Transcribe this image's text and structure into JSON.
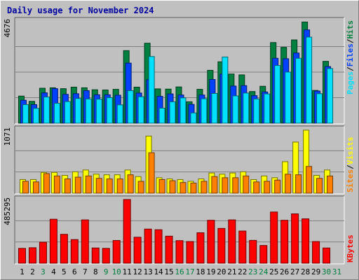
{
  "title": "Daily usage for November 2024",
  "colors": {
    "hits": "#008040",
    "files": "#0040ff",
    "pages": "#00e0ff",
    "visits": "#ffff00",
    "sites": "#ff8000",
    "kbytes": "#ff0000",
    "weekday_label": "#000000",
    "weekend_label": "#008040",
    "panel_bg": "#c0c0c0",
    "grid": "#808080"
  },
  "chart_data": [
    {
      "type": "bar",
      "panel": "hits-files-pages",
      "y_max_label": "4676",
      "ylim": [
        0,
        4676
      ],
      "legend": [
        "Pages",
        "Files",
        "Hits"
      ],
      "categories": [
        "1",
        "2",
        "3",
        "4",
        "5",
        "6",
        "7",
        "8",
        "9",
        "10",
        "11",
        "12",
        "13",
        "14",
        "15",
        "16",
        "17",
        "18",
        "19",
        "20",
        "21",
        "22",
        "23",
        "24",
        "25",
        "26",
        "27",
        "28",
        "29",
        "30",
        "31"
      ],
      "series": [
        {
          "name": "Hits",
          "values": [
            1240,
            1000,
            1600,
            1620,
            1580,
            1650,
            1620,
            1530,
            1520,
            1550,
            3320,
            1650,
            3660,
            1570,
            1560,
            1660,
            980,
            1550,
            2420,
            2810,
            2250,
            2210,
            1450,
            1690,
            3690,
            3470,
            3810,
            4630,
            1500,
            2830,
            0
          ]
        },
        {
          "name": "Files",
          "values": [
            1050,
            850,
            1390,
            1580,
            1320,
            1350,
            1490,
            1300,
            1300,
            1280,
            2750,
            1380,
            1990,
            1230,
            1340,
            1290,
            860,
            1290,
            2000,
            2250,
            1700,
            1720,
            1260,
            1430,
            2970,
            2950,
            3210,
            4270,
            1470,
            2590,
            0
          ]
        },
        {
          "name": "Pages",
          "values": [
            850,
            680,
            1200,
            910,
            990,
            1130,
            1110,
            1100,
            1170,
            840,
            1490,
            1210,
            3050,
            690,
            980,
            1160,
            470,
            1120,
            1360,
            3030,
            1250,
            1380,
            1110,
            1340,
            2640,
            2340,
            2970,
            3940,
            1350,
            2500,
            0
          ]
        }
      ]
    },
    {
      "type": "bar",
      "panel": "visits-sites",
      "y_max_label": "1071",
      "ylim": [
        0,
        1071
      ],
      "legend": [
        "Sites",
        "Visits"
      ],
      "categories": [
        "1",
        "2",
        "3",
        "4",
        "5",
        "6",
        "7",
        "8",
        "9",
        "10",
        "11",
        "12",
        "13",
        "14",
        "15",
        "16",
        "17",
        "18",
        "19",
        "20",
        "21",
        "22",
        "23",
        "24",
        "25",
        "26",
        "27",
        "28",
        "29",
        "30",
        "31"
      ],
      "series": [
        {
          "name": "Visits",
          "values": [
            230,
            230,
            350,
            350,
            300,
            360,
            390,
            320,
            310,
            310,
            390,
            280,
            960,
            260,
            240,
            230,
            200,
            240,
            340,
            320,
            340,
            360,
            230,
            290,
            260,
            530,
            860,
            1060,
            300,
            390,
            0
          ]
        },
        {
          "name": "Sites",
          "values": [
            200,
            190,
            330,
            290,
            240,
            270,
            290,
            250,
            240,
            240,
            310,
            200,
            680,
            230,
            210,
            180,
            170,
            200,
            280,
            260,
            260,
            290,
            190,
            200,
            220,
            320,
            310,
            450,
            250,
            290,
            0
          ]
        }
      ]
    },
    {
      "type": "bar",
      "panel": "kbytes",
      "y_max_label": "485295",
      "ylim": [
        0,
        485295
      ],
      "legend": [
        "KBytes"
      ],
      "categories": [
        "1",
        "2",
        "3",
        "4",
        "5",
        "6",
        "7",
        "8",
        "9",
        "10",
        "11",
        "12",
        "13",
        "14",
        "15",
        "16",
        "17",
        "18",
        "19",
        "20",
        "21",
        "22",
        "23",
        "24",
        "25",
        "26",
        "27",
        "28",
        "29",
        "30",
        "31"
      ],
      "series": [
        {
          "name": "KBytes",
          "values": [
            113000,
            118000,
            160000,
            335000,
            220000,
            180000,
            330000,
            116000,
            113000,
            173000,
            485295,
            198000,
            260000,
            255000,
            206000,
            172000,
            165000,
            232000,
            327000,
            265000,
            330000,
            245000,
            174000,
            135000,
            390000,
            327000,
            376000,
            338000,
            165000,
            116000,
            0
          ]
        }
      ]
    }
  ],
  "day_labels": [
    {
      "text": "1",
      "weekend": false
    },
    {
      "text": "2",
      "weekend": false
    },
    {
      "text": "3",
      "weekend": true
    },
    {
      "text": "4",
      "weekend": false
    },
    {
      "text": "5",
      "weekend": false
    },
    {
      "text": "6",
      "weekend": false
    },
    {
      "text": "7",
      "weekend": false
    },
    {
      "text": "8",
      "weekend": false
    },
    {
      "text": "9",
      "weekend": true
    },
    {
      "text": "10",
      "weekend": true
    },
    {
      "text": "11",
      "weekend": false
    },
    {
      "text": "12",
      "weekend": false
    },
    {
      "text": "13",
      "weekend": false
    },
    {
      "text": "14",
      "weekend": false
    },
    {
      "text": "15",
      "weekend": false
    },
    {
      "text": "16",
      "weekend": true
    },
    {
      "text": "17",
      "weekend": true
    },
    {
      "text": "18",
      "weekend": false
    },
    {
      "text": "19",
      "weekend": false
    },
    {
      "text": "20",
      "weekend": false
    },
    {
      "text": "21",
      "weekend": false
    },
    {
      "text": "22",
      "weekend": false
    },
    {
      "text": "23",
      "weekend": true
    },
    {
      "text": "24",
      "weekend": true
    },
    {
      "text": "25",
      "weekend": false
    },
    {
      "text": "26",
      "weekend": false
    },
    {
      "text": "27",
      "weekend": false
    },
    {
      "text": "28",
      "weekend": false
    },
    {
      "text": "29",
      "weekend": false
    },
    {
      "text": "30",
      "weekend": true
    },
    {
      "text": "31",
      "weekend": true
    }
  ]
}
